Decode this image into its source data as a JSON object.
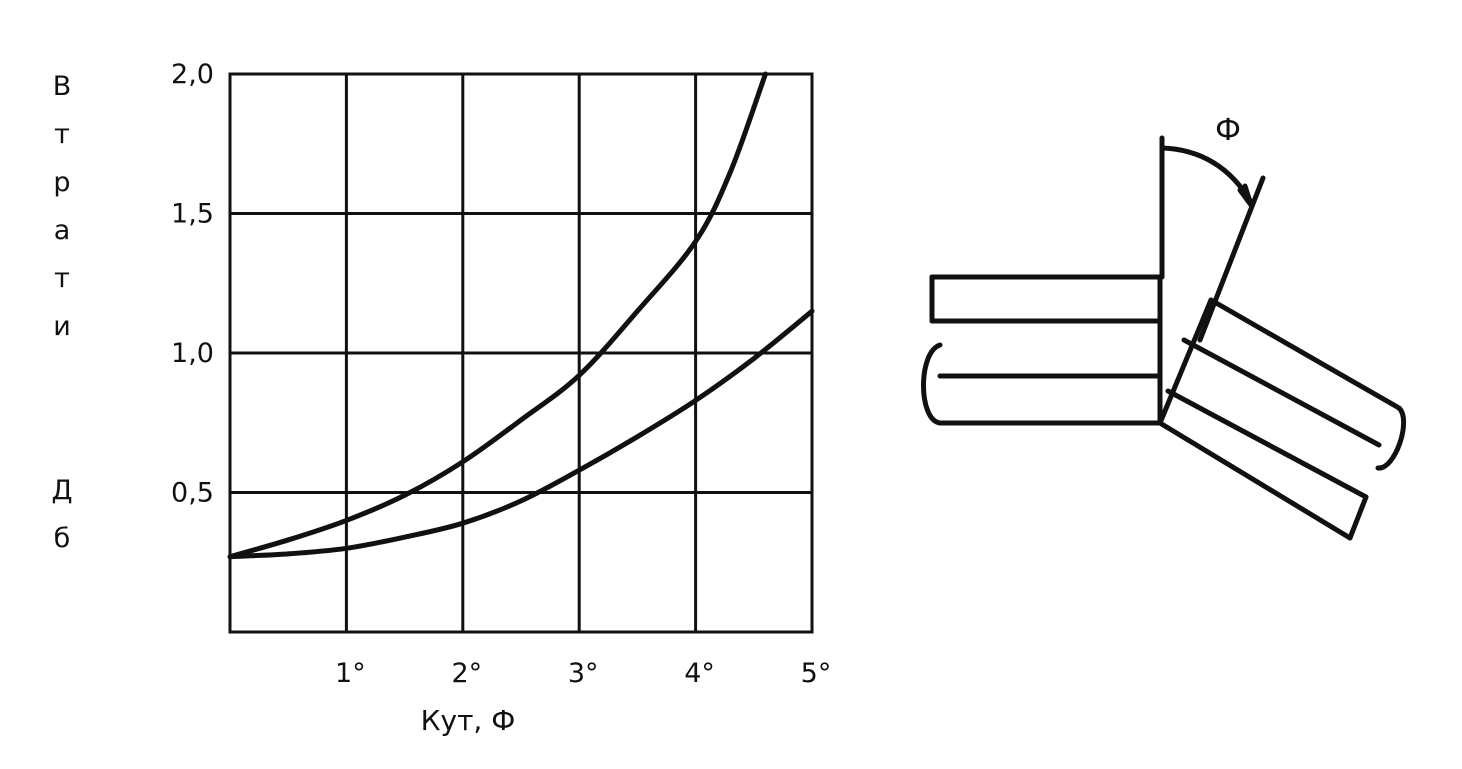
{
  "chart_data": {
    "type": "line",
    "title": "",
    "xlabel": "Кут, Ф",
    "ylabel": "Втрати Дб",
    "ylabel_lines": [
      "В",
      "т",
      "р",
      "а",
      "т",
      "и",
      "Д",
      "б"
    ],
    "x_tick_labels": [
      "1°",
      "2°",
      "3°",
      "4°",
      "5°"
    ],
    "x_ticks": [
      1,
      2,
      3,
      4,
      5
    ],
    "y_tick_labels": [
      "0,5",
      "1,0",
      "1,5",
      "2,0"
    ],
    "y_ticks": [
      0.5,
      1.0,
      1.5,
      2.0
    ],
    "xlim": [
      0,
      5
    ],
    "ylim": [
      0,
      2.0
    ],
    "grid": true,
    "series": [
      {
        "x": [
          0,
          0.5,
          1,
          1.5,
          2,
          2.5,
          3,
          3.5,
          4,
          4.3,
          4.6
        ],
        "y": [
          0.27,
          0.33,
          0.4,
          0.49,
          0.61,
          0.76,
          0.92,
          1.15,
          1.4,
          1.65,
          2.0
        ]
      },
      {
        "x": [
          0,
          0.5,
          1,
          1.5,
          2,
          2.5,
          3,
          3.5,
          4,
          4.5,
          5
        ],
        "y": [
          0.27,
          0.28,
          0.3,
          0.34,
          0.39,
          0.47,
          0.58,
          0.7,
          0.83,
          0.98,
          1.15
        ]
      }
    ]
  },
  "diagram": {
    "angle_label": "Ф"
  }
}
